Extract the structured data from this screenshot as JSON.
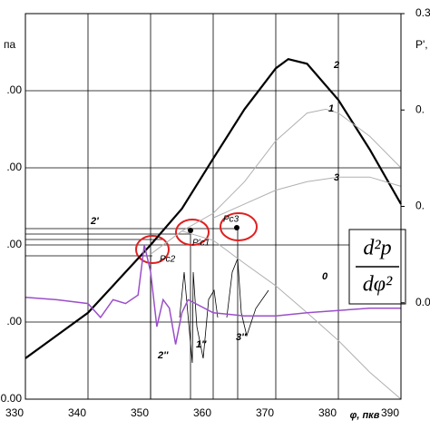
{
  "chart_data": {
    "type": "line",
    "y_label": "па",
    "y2_label": "P',",
    "x_label": "φ, пкв",
    "xlim": [
      330,
      390
    ],
    "xticks": [
      330,
      340,
      350,
      360,
      370,
      380,
      390
    ],
    "ylim": [
      0,
      5
    ],
    "yticks": [
      {
        "value": 0,
        "label": "0.00"
      },
      {
        "value": 1,
        "label": ".00"
      },
      {
        "value": 2,
        "label": ".00"
      },
      {
        "value": 3,
        "label": ".00"
      },
      {
        "value": 4,
        "label": ".00"
      }
    ],
    "y2lim": [
      -0.1,
      0.3
    ],
    "y2ticks": [
      {
        "value": 0.0,
        "label": "0.0"
      },
      {
        "value": 0.1,
        "label": "0."
      },
      {
        "value": 0.2,
        "label": "0."
      },
      {
        "value": 0.3,
        "label": "0.3"
      }
    ],
    "grid": true,
    "series": [
      {
        "name": "2",
        "color": "#000000",
        "width": 2.2,
        "x": [
          330,
          340,
          350,
          355,
          360,
          365,
          370,
          372,
          375,
          380,
          385,
          390
        ],
        "values": [
          0.53,
          1.12,
          2.0,
          2.47,
          3.12,
          3.76,
          4.29,
          4.41,
          4.35,
          3.88,
          3.24,
          2.53
        ]
      },
      {
        "name": "1",
        "color": "#b0b0b0",
        "width": 1,
        "x": [
          350,
          355,
          360,
          365,
          370,
          375,
          378,
          380,
          385,
          390
        ],
        "values": [
          1.88,
          2.18,
          2.41,
          2.82,
          3.35,
          3.71,
          3.76,
          3.71,
          3.41,
          3.0
        ]
      },
      {
        "name": "3",
        "color": "#b0b0b0",
        "width": 1,
        "x": [
          360,
          365,
          370,
          375,
          380,
          385,
          390
        ],
        "values": [
          2.35,
          2.53,
          2.71,
          2.82,
          2.88,
          2.88,
          2.76
        ]
      },
      {
        "name": "0",
        "color": "#b0b0b0",
        "width": 1,
        "x": [
          355,
          360,
          365,
          370,
          375,
          380,
          385,
          390
        ],
        "values": [
          2.18,
          2.06,
          1.76,
          1.47,
          1.12,
          0.76,
          0.35,
          0.0
        ]
      },
      {
        "color": "#9a4fc9",
        "width": 1.5,
        "x": [
          330,
          335,
          340,
          342,
          344,
          346,
          348,
          349,
          350,
          351,
          352,
          353,
          354,
          355,
          356,
          360,
          365,
          370,
          375,
          380,
          385,
          390
        ],
        "values": [
          1.32,
          1.29,
          1.24,
          1.06,
          1.29,
          1.24,
          1.35,
          2.0,
          1.65,
          0.94,
          1.29,
          1.18,
          0.71,
          1.12,
          1.29,
          1.12,
          1.08,
          1.08,
          1.12,
          1.15,
          1.18,
          1.18
        ]
      }
    ],
    "annotations": [
      "2'",
      "2''",
      "1''",
      "3''",
      "Pc2",
      "P'c1",
      "Pc3"
    ],
    "formula_numerator": "d²p",
    "formula_denominator": "dφ²"
  }
}
